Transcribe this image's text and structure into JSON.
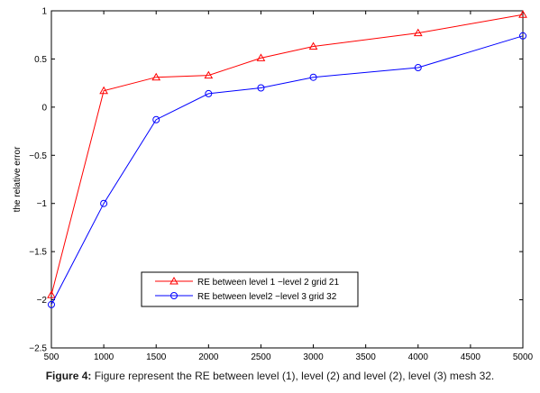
{
  "chart_data": {
    "type": "line",
    "ylabel": "the relative error",
    "xlim": [
      500,
      5000
    ],
    "ylim": [
      -2.5,
      1
    ],
    "xticks": [
      500,
      1000,
      1500,
      2000,
      2500,
      3000,
      3500,
      4000,
      4500,
      5000
    ],
    "yticks": [
      1,
      0.5,
      0,
      -0.5,
      -1,
      -1.5,
      -2,
      -2.5
    ],
    "ytick_labels": [
      "1",
      "0.5",
      "0",
      "−0.5",
      "−1",
      "−1.5",
      "−2",
      "−2.5"
    ],
    "grid": false,
    "legend_position": "lower-center",
    "series": [
      {
        "name": "RE between level 1 −level 2 grid 21",
        "color": "#ff0000",
        "marker": "triangle",
        "x": [
          500,
          1000,
          1500,
          2000,
          2500,
          3000,
          4000,
          5000
        ],
        "y": [
          -1.95,
          0.17,
          0.31,
          0.33,
          0.51,
          0.63,
          0.77,
          0.96
        ]
      },
      {
        "name": "RE between  level2 −level 3 grid 32",
        "color": "#0000ff",
        "marker": "circle",
        "x": [
          500,
          1000,
          1500,
          2000,
          2500,
          3000,
          4000,
          5000
        ],
        "y": [
          -2.05,
          -1.0,
          -0.13,
          0.14,
          0.2,
          0.31,
          0.41,
          0.74
        ]
      }
    ]
  },
  "caption": {
    "label": "Figure 4:",
    "text": " Figure represent the RE between level (1), level (2) and level (2), level (3) mesh 32."
  }
}
